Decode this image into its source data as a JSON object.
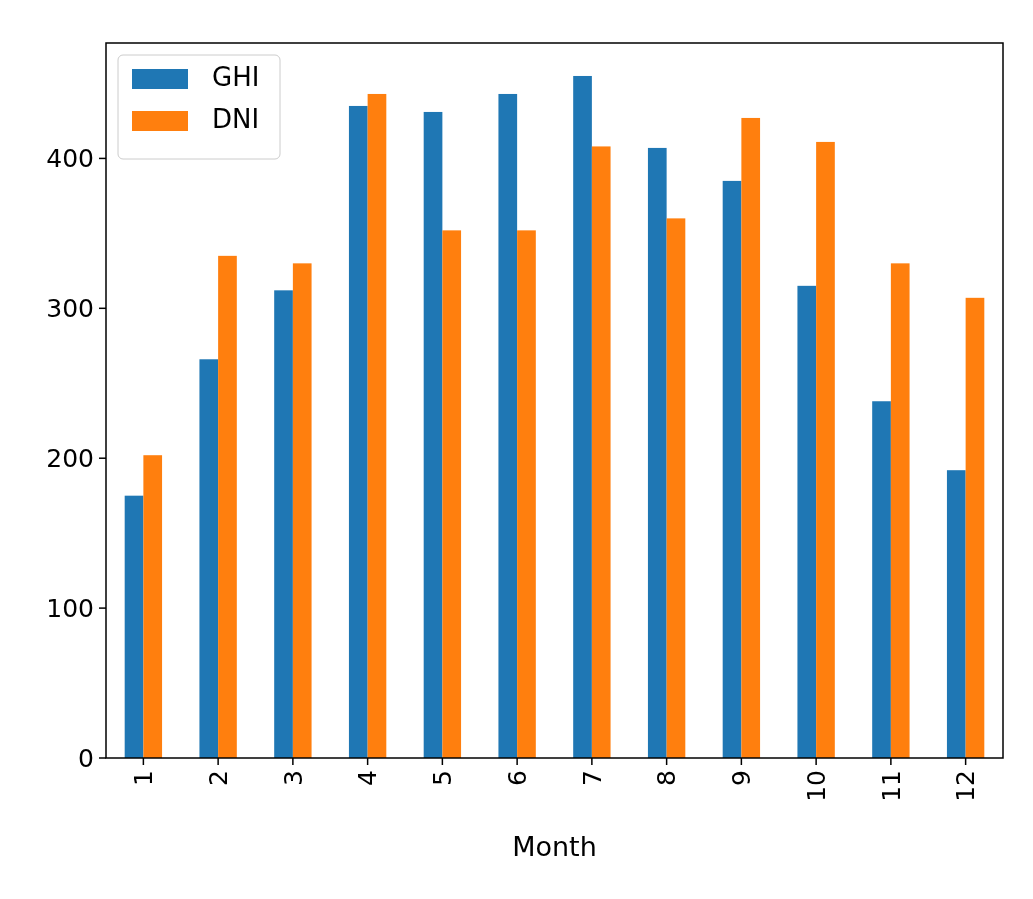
{
  "chart_data": {
    "type": "bar",
    "xlabel": "Month",
    "categories": [
      "1",
      "2",
      "3",
      "4",
      "5",
      "6",
      "7",
      "8",
      "9",
      "10",
      "11",
      "12"
    ],
    "series": [
      {
        "name": "GHI",
        "color": "#1f77b4",
        "values": [
          175,
          266,
          312,
          435,
          431,
          443,
          455,
          407,
          385,
          315,
          238,
          192
        ]
      },
      {
        "name": "DNI",
        "color": "#ff7f0e",
        "values": [
          202,
          335,
          330,
          443,
          352,
          352,
          408,
          360,
          427,
          411,
          330,
          307
        ]
      }
    ],
    "ylim": [
      0,
      477
    ],
    "yticks": [
      0,
      100,
      200,
      300,
      400
    ],
    "legend": "top left",
    "grid": false
  }
}
